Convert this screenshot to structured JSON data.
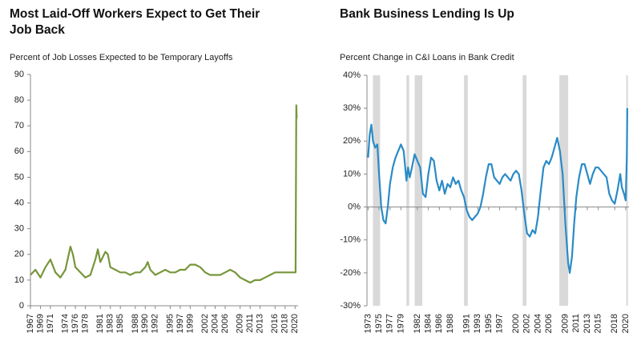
{
  "chart_data": [
    {
      "type": "line",
      "title": [
        "Most Laid-Off Workers Expect to Get Their",
        "Job Back"
      ],
      "subtitle": "Percent of Job Losses Expected to be Temporary Layoffs",
      "color": "#77963a",
      "x": [
        1967,
        1968,
        1969,
        1970,
        1971,
        1972,
        1973,
        1974,
        1975,
        1975.5,
        1976,
        1977,
        1978,
        1979,
        1980,
        1980.5,
        1981,
        1982,
        1982.5,
        1983,
        1984,
        1985,
        1986,
        1987,
        1988,
        1989,
        1990,
        1990.5,
        1991,
        1992,
        1993,
        1994,
        1995,
        1996,
        1997,
        1998,
        1999,
        2000,
        2001,
        2002,
        2003,
        2004,
        2005,
        2006,
        2007,
        2008,
        2009,
        2010,
        2011,
        2012,
        2013,
        2014,
        2015,
        2016,
        2017,
        2018,
        2019,
        2019.9,
        2020.1,
        2020.25,
        2020.33
      ],
      "values": [
        12,
        14,
        11,
        15,
        18,
        13,
        11,
        14,
        23,
        20,
        15,
        13,
        11,
        12,
        18,
        22,
        17,
        21,
        20,
        15,
        14,
        13,
        13,
        12,
        13,
        13,
        15,
        17,
        14,
        12,
        13,
        14,
        13,
        13,
        14,
        14,
        16,
        16,
        15,
        13,
        12,
        12,
        12,
        13,
        14,
        13,
        11,
        10,
        9,
        10,
        10,
        11,
        12,
        13,
        13,
        13,
        13,
        13,
        13,
        78,
        73
      ],
      "xlim": [
        1967,
        2020.6
      ],
      "xticks": [
        1967,
        1969,
        1971,
        1974,
        1976,
        1978,
        1981,
        1983,
        1985,
        1988,
        1990,
        1992,
        1995,
        1997,
        1999,
        2002,
        2004,
        2006,
        2009,
        2011,
        2013,
        2016,
        2018,
        2020
      ],
      "ylim": [
        0,
        90
      ],
      "yticks": [
        0,
        10,
        20,
        30,
        40,
        50,
        60,
        70,
        80,
        90
      ]
    },
    {
      "type": "line",
      "title": [
        "Bank Business Lending Is Up"
      ],
      "subtitle": "Percent Change in C&I Loans in Bank Credit",
      "color": "#2a8bc6",
      "recessions": [
        [
          1973.9,
          1975.2
        ],
        [
          1980,
          1980.5
        ],
        [
          1981.5,
          1982.9
        ],
        [
          1990.5,
          1991.2
        ],
        [
          2001.2,
          2001.9
        ],
        [
          2007.9,
          2009.5
        ],
        [
          2020.1,
          2020.4
        ]
      ],
      "recession_color": "#d9d9d9",
      "x": [
        1973,
        1973.3,
        1973.6,
        1973.9,
        1974.3,
        1974.7,
        1975,
        1975.4,
        1975.8,
        1976.2,
        1976.6,
        1977,
        1977.5,
        1978,
        1978.5,
        1979,
        1979.5,
        1980,
        1980.3,
        1980.6,
        1981,
        1981.5,
        1982,
        1982.5,
        1983,
        1983.5,
        1984,
        1984.5,
        1985,
        1985.5,
        1986,
        1986.5,
        1987,
        1987.5,
        1988,
        1988.5,
        1989,
        1989.5,
        1990,
        1990.5,
        1991,
        1991.5,
        1992,
        1992.5,
        1993,
        1993.5,
        1994,
        1994.5,
        1995,
        1995.5,
        1996,
        1996.5,
        1997,
        1997.5,
        1998,
        1998.5,
        1999,
        1999.5,
        2000,
        2000.5,
        2001,
        2001.5,
        2002,
        2002.5,
        2003,
        2003.5,
        2004,
        2004.5,
        2005,
        2005.5,
        2006,
        2006.5,
        2007,
        2007.5,
        2008,
        2008.5,
        2009,
        2009.5,
        2009.8,
        2010.2,
        2010.6,
        2011,
        2011.5,
        2012,
        2012.5,
        2013,
        2013.5,
        2014,
        2014.5,
        2015,
        2015.5,
        2016,
        2016.5,
        2017,
        2017.5,
        2018,
        2018.5,
        2019,
        2019.3,
        2019.7,
        2020,
        2020.2,
        2020.3
      ],
      "values": [
        15,
        22,
        25,
        20,
        18,
        19,
        10,
        0,
        -4,
        -5,
        0,
        7,
        12,
        15,
        17,
        19,
        17,
        8,
        12,
        9,
        12,
        16,
        14,
        12,
        4,
        3,
        10,
        15,
        14,
        8,
        5,
        8,
        4,
        7,
        6,
        9,
        7,
        8,
        5,
        3,
        -1,
        -3,
        -4,
        -3,
        -2,
        0,
        4,
        9,
        13,
        13,
        9,
        8,
        7,
        9,
        10,
        9,
        8,
        10,
        11,
        10,
        5,
        -2,
        -8,
        -9,
        -7,
        -8,
        -3,
        5,
        12,
        14,
        13,
        15,
        18,
        21,
        17,
        10,
        -5,
        -17,
        -20,
        -15,
        -5,
        3,
        9,
        13,
        13,
        10,
        7,
        10,
        12,
        12,
        11,
        10,
        9,
        4,
        2,
        1,
        5,
        10,
        6,
        4,
        2,
        15,
        30
      ],
      "xlim": [
        1972.8,
        2020.6
      ],
      "xticks": [
        1973,
        1975,
        1977,
        1979,
        1982,
        1984,
        1986,
        1988,
        1991,
        1993,
        1995,
        1997,
        2000,
        2002,
        2004,
        2006,
        2009,
        2011,
        2013,
        2015,
        2018,
        2020
      ],
      "ylim": [
        -30,
        40
      ],
      "yticks": [
        {
          "value": -30,
          "label": "-30%"
        },
        {
          "value": -20,
          "label": "-20%"
        },
        {
          "value": -10,
          "label": "-10%"
        },
        {
          "value": 0,
          "label": "0%"
        },
        {
          "value": 10,
          "label": "10%"
        },
        {
          "value": 20,
          "label": "20%"
        },
        {
          "value": 30,
          "label": "30%"
        },
        {
          "value": 40,
          "label": "40%"
        }
      ]
    }
  ]
}
